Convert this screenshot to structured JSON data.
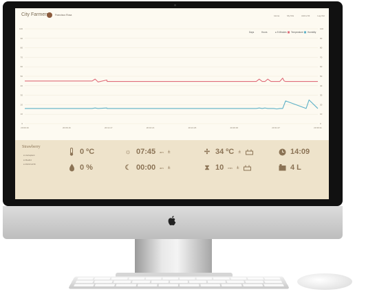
{
  "app": {
    "title": "City Farmers",
    "user_name": "Francisco Rosa"
  },
  "nav": {
    "items": [
      "Home",
      "My Kits",
      "Add a Kit",
      "Log Out"
    ]
  },
  "chart_controls": {
    "ranges": [
      "Days",
      "Hours",
      "5 Minutes"
    ],
    "selected": "5 Minutes"
  },
  "legend": {
    "temperature": "Temperature",
    "humidity": "Humidity"
  },
  "colors": {
    "temperature": "#e06b78",
    "humidity": "#5bb0c7",
    "accent": "#8b7355"
  },
  "chart_data": {
    "type": "line",
    "x_labels": [
      "20:00:16",
      "20:06:16",
      "20:11:17",
      "20:16:21",
      "20:21:26",
      "20:26:30",
      "20:31:27",
      "20:36:31"
    ],
    "y_left_ticks": [
      "100",
      "90",
      "80",
      "70",
      "60",
      "50",
      "40",
      "30",
      "20",
      "10",
      "0"
    ],
    "y_right_ticks": [
      "100",
      "90",
      "80",
      "70",
      "60",
      "50",
      "40",
      "30",
      "20",
      "10",
      "0"
    ],
    "ylim": [
      0,
      100
    ],
    "series": [
      {
        "name": "Temperature",
        "x": [
          0,
          0.23,
          0.24,
          0.25,
          0.28,
          0.281,
          0.79,
          0.8,
          0.81,
          0.82,
          0.829,
          0.84,
          0.85,
          0.87,
          0.88,
          0.885,
          0.89,
          1
        ],
        "values": [
          45,
          45,
          47,
          44,
          46,
          44.5,
          44.5,
          47,
          44.5,
          44.5,
          47,
          44.5,
          44.5,
          44.5,
          48,
          45,
          44.5,
          44.5
        ]
      },
      {
        "name": "Humidity",
        "x": [
          0,
          0.23,
          0.24,
          0.25,
          0.28,
          0.281,
          0.79,
          0.8,
          0.81,
          0.82,
          0.829,
          0.84,
          0.85,
          0.86,
          0.87,
          0.88,
          0.89,
          0.96,
          0.97,
          1
        ],
        "values": [
          16,
          16,
          16.5,
          16,
          16.5,
          16,
          16,
          16.5,
          16,
          16.5,
          16,
          16,
          16,
          15.5,
          16,
          16,
          24,
          16,
          25,
          16
        ]
      }
    ]
  },
  "plant": {
    "name": "Strawberry",
    "meta": [
      "Hortaplant",
      "Madrid",
      "2021/12/16"
    ]
  },
  "metrics": {
    "temperature": {
      "value": "0 ºC"
    },
    "humidity": {
      "value": "0 %"
    },
    "light_on": {
      "value": "07:45",
      "suffix": "am",
      "control": "±"
    },
    "light_off": {
      "value": "00:00",
      "suffix": "am",
      "control": "±"
    },
    "fan": {
      "value": "34 ºC",
      "control": "±"
    },
    "timer": {
      "value": "10",
      "suffix": "min",
      "control": "±"
    },
    "clock": {
      "value": "14:09"
    },
    "water": {
      "value": "4 L"
    }
  }
}
